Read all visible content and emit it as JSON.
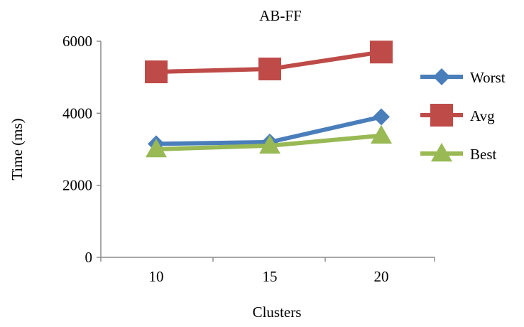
{
  "chart_data": {
    "type": "line",
    "title": "AB-FF",
    "xlabel": "Clusters",
    "ylabel": "Time (ms)",
    "categories": [
      "10",
      "15",
      "20"
    ],
    "ylim": [
      0,
      6000
    ],
    "yticks": [
      "0",
      "2000",
      "4000",
      "6000"
    ],
    "grid": false,
    "legend_position": "right",
    "series": [
      {
        "name": "Worst",
        "values": [
          3150,
          3200,
          3900
        ],
        "color": "#4a7ebb",
        "marker": "diamond"
      },
      {
        "name": "Avg",
        "values": [
          5150,
          5230,
          5700
        ],
        "color": "#be4b48",
        "marker": "square"
      },
      {
        "name": "Best",
        "values": [
          3000,
          3100,
          3380
        ],
        "color": "#98b954",
        "marker": "triangle"
      }
    ]
  }
}
